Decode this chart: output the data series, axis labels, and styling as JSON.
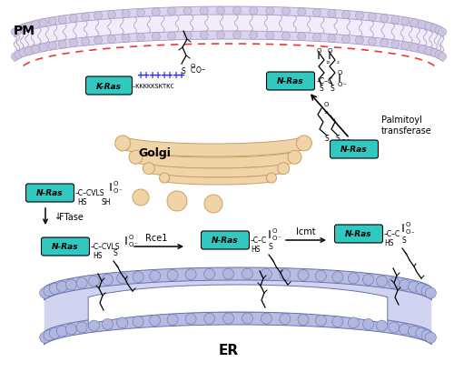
{
  "bg": "#ffffff",
  "pm_fill": "#ddd5ee",
  "pm_edge": "#a898c8",
  "pm_head": "#ccc5e0",
  "er_fill": "#b8bce0",
  "er_edge": "#6870b0",
  "er_lumen": "#d0d4f0",
  "golgi_fill": "#f0d4a8",
  "golgi_edge": "#c8a060",
  "nras_fill": "#30c8c0",
  "nras_edge": "#000000",
  "red_dash": "#ee2222",
  "blue_plus": "#2222ee",
  "label_pm": "PM",
  "label_er": "ER",
  "label_golgi": "Golgi",
  "label_ftase": "FTase",
  "label_rce1": "Rce1",
  "label_icmt": "Icmt",
  "label_palmitoyl": "Palmitoyl\ntransferase"
}
